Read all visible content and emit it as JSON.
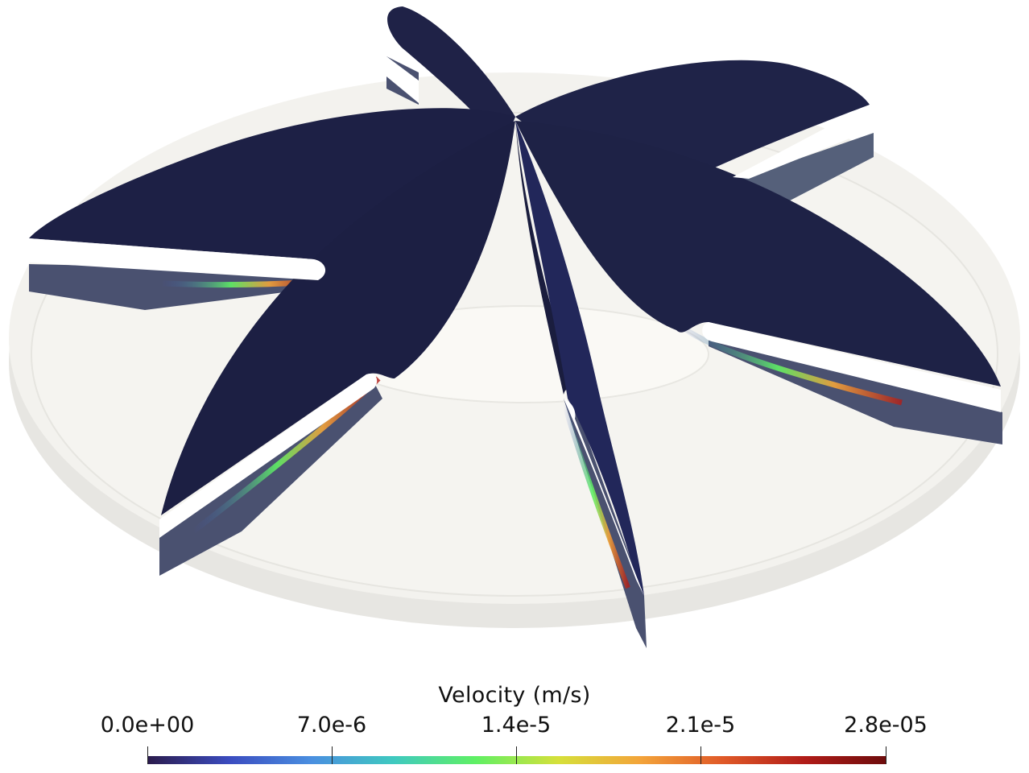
{
  "colorbar": {
    "title": "Velocity (m/s)",
    "ticks": [
      "0.0e+00",
      "7.0e-6",
      "1.4e-5",
      "2.1e-5",
      "2.8e-05"
    ],
    "range": [
      0,
      2.8e-05
    ],
    "colormap": [
      "#2b1b4c",
      "#3b4cc0",
      "#4a8fe0",
      "#3fc9c0",
      "#5ff064",
      "#d6e03a",
      "#f3a43a",
      "#e05a28",
      "#b11c18",
      "#6d0c0c"
    ]
  },
  "scene": {
    "blade_color": "#1e2246",
    "blade_cut_color": "#4e5673",
    "housing_color": "#f1f0ec",
    "hub_color": "#f8f7f2"
  }
}
